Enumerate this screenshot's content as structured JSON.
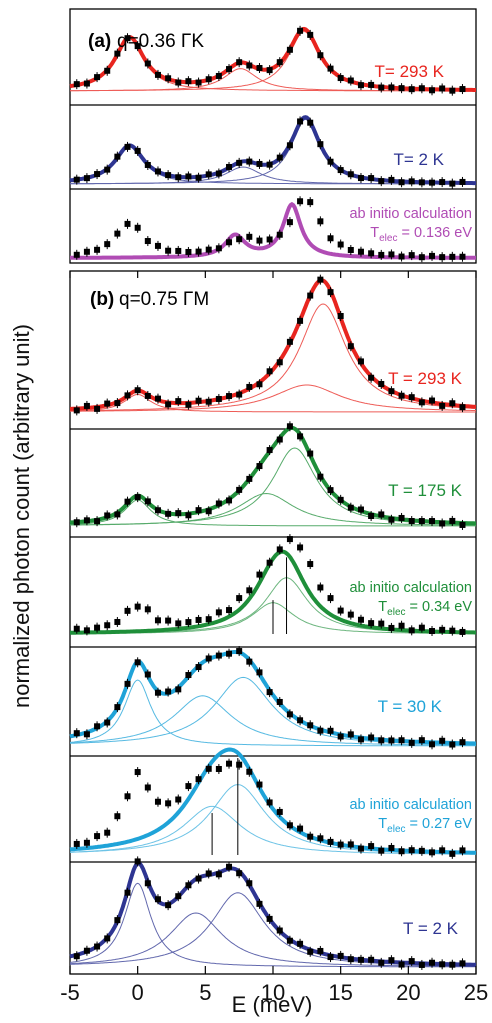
{
  "axes": {
    "xlabel": "E (meV)",
    "ylabel": "normalized photon count (arbitrary unit)",
    "xlim": [
      -5,
      25
    ],
    "xticks": [
      "-5",
      "0",
      "5",
      "10",
      "15",
      "20",
      "25"
    ]
  },
  "panels": [
    {
      "tag": "(a)",
      "q_text": "q=0.36 ΓK"
    },
    {
      "tag": "(b)",
      "q_text": "q=0.75 ΓM"
    }
  ],
  "colors": {
    "t293": "#e8251f",
    "t2": "#2e3592",
    "calc_a": "#b04cb4",
    "t175": "#1f8f3a",
    "t30": "#1fa3d8",
    "marker": "#000000"
  },
  "chart_data": {
    "type": "scatter",
    "xlabel": "E (meV)",
    "ylabel": "normalized photon count (arbitrary unit)",
    "xlim": [
      -5,
      25
    ],
    "subplots": [
      {
        "panel": "(a)",
        "label": "T= 293 K",
        "color": "#e8251f",
        "kind": "fit",
        "peaks": [
          {
            "center": -0.6,
            "height": 0.75,
            "width": 1.3
          },
          {
            "center": 7.6,
            "height": 0.32,
            "width": 1.5
          },
          {
            "center": 12.3,
            "height": 0.85,
            "width": 1.4
          }
        ]
      },
      {
        "panel": "(a)",
        "label": "T= 2 K",
        "color": "#2e3592",
        "kind": "fit",
        "peaks": [
          {
            "center": -0.6,
            "height": 0.55,
            "width": 1.3
          },
          {
            "center": 7.8,
            "height": 0.25,
            "width": 1.6
          },
          {
            "center": 12.4,
            "height": 0.95,
            "width": 1.3
          }
        ]
      },
      {
        "panel": "(a)",
        "label_line1": "ab initio calculation",
        "label_line2": "T",
        "label_sub": "elec",
        "label_value": "=  0.136 eV",
        "color": "#b04cb4",
        "kind": "calc",
        "calc_peaks": [
          {
            "center": 7.2,
            "height": 0.35,
            "width": 0.9
          },
          {
            "center": 11.4,
            "height": 0.85,
            "width": 0.8
          }
        ],
        "data_peaks": [
          {
            "center": -0.6,
            "height": 0.55,
            "width": 1.3
          },
          {
            "center": 7.8,
            "height": 0.25,
            "width": 1.6
          },
          {
            "center": 12.4,
            "height": 0.95,
            "width": 1.3
          }
        ]
      },
      {
        "panel": "(b)",
        "label": "T = 293 K",
        "color": "#e8251f",
        "kind": "fit",
        "peaks": [
          {
            "center": 0.0,
            "height": 0.13,
            "width": 1.2
          },
          {
            "center": 12.5,
            "height": 0.2,
            "width": 3.0
          },
          {
            "center": 13.7,
            "height": 0.8,
            "width": 2.1
          }
        ]
      },
      {
        "panel": "(b)",
        "label": "T = 175 K",
        "color": "#1f8f3a",
        "kind": "fit",
        "peaks": [
          {
            "center": 0.0,
            "height": 0.2,
            "width": 1.2
          },
          {
            "center": 9.5,
            "height": 0.25,
            "width": 2.5
          },
          {
            "center": 11.6,
            "height": 0.6,
            "width": 2.0
          }
        ]
      },
      {
        "panel": "(b)",
        "label_line1": "ab initio calculation",
        "label_line2": "T",
        "label_sub": "elec",
        "label_value": "=  0.34 eV",
        "color": "#1f8f3a",
        "kind": "calc",
        "calc_peaks": [
          {
            "center": 10.0,
            "height": 0.25,
            "width": 1.9
          },
          {
            "center": 11.0,
            "height": 0.45,
            "width": 1.9
          }
        ],
        "sticks": [
          10.0,
          11.0
        ],
        "data_peaks": [
          {
            "center": 0.0,
            "height": 0.2,
            "width": 1.2
          },
          {
            "center": 9.5,
            "height": 0.25,
            "width": 2.5
          },
          {
            "center": 11.6,
            "height": 0.6,
            "width": 2.0
          }
        ]
      },
      {
        "panel": "(b)",
        "label": "T = 30 K",
        "color": "#1fa3d8",
        "kind": "fit",
        "peaks": [
          {
            "center": 0.0,
            "height": 0.5,
            "width": 1.2
          },
          {
            "center": 4.8,
            "height": 0.38,
            "width": 2.6
          },
          {
            "center": 7.8,
            "height": 0.52,
            "width": 2.6
          }
        ]
      },
      {
        "panel": "(b)",
        "label_line1": "ab initio calculation",
        "label_line2": "T",
        "label_sub": "elec",
        "label_value": "=  0.27 eV",
        "color": "#1fa3d8",
        "kind": "calc",
        "calc_peaks": [
          {
            "center": 5.5,
            "height": 0.38,
            "width": 2.6
          },
          {
            "center": 7.4,
            "height": 0.55,
            "width": 2.5
          }
        ],
        "sticks": [
          5.5,
          7.4
        ],
        "data_peaks": [
          {
            "center": 0.0,
            "height": 0.5,
            "width": 1.2
          },
          {
            "center": 4.8,
            "height": 0.38,
            "width": 2.6
          },
          {
            "center": 7.8,
            "height": 0.52,
            "width": 2.6
          }
        ]
      },
      {
        "panel": "(b)",
        "label": "T = 2 K",
        "color": "#2e3592",
        "kind": "fit",
        "peaks": [
          {
            "center": 0.0,
            "height": 0.62,
            "width": 1.2
          },
          {
            "center": 4.3,
            "height": 0.4,
            "width": 2.4
          },
          {
            "center": 7.4,
            "height": 0.55,
            "width": 2.4
          }
        ]
      }
    ]
  }
}
